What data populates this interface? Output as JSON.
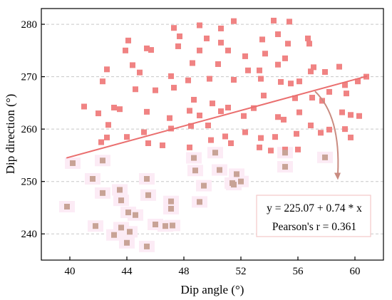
{
  "chart_data": {
    "type": "scatter",
    "xlabel": "Dip angle (°)",
    "ylabel": "Dip direction (°)",
    "xlim": [
      38,
      62
    ],
    "ylim": [
      235,
      283
    ],
    "xticks": [
      40,
      44,
      48,
      52,
      56,
      60
    ],
    "yticks": [
      240,
      250,
      260,
      270,
      280
    ],
    "xtick_labels": [
      "40",
      "44",
      "48",
      "52",
      "56",
      "60"
    ],
    "ytick_labels": [
      "240",
      "250",
      "260",
      "270",
      "280"
    ],
    "grid": "horizontal dashed",
    "colors": {
      "upper": "#f08383",
      "lower": "#c8a396",
      "fit_line": "#ea6f6f",
      "arrow": "#c98b80",
      "grid": "#c8c8c8",
      "annotation_border": "#f3c9c9",
      "halo": "#fcebf5"
    },
    "fit": {
      "intercept": 225.07,
      "slope": 0.74,
      "x_start": 39.8,
      "x_end": 60.8,
      "equation": "y = 225.07 + 0.74 * x",
      "pearson": "Pearson's r = 0.361"
    },
    "arrow": {
      "from": [
        57.2,
        267.2
      ],
      "to": [
        58.8,
        250.3
      ]
    },
    "series": [
      {
        "role": "upper",
        "points": [
          [
            51.5,
            280.6
          ],
          [
            54.3,
            280.7
          ],
          [
            55.4,
            280.5
          ],
          [
            47.3,
            279.3
          ],
          [
            49.1,
            279.8
          ],
          [
            50.6,
            279.2
          ],
          [
            47.7,
            277.7
          ],
          [
            49.6,
            277.3
          ],
          [
            53.5,
            277.1
          ],
          [
            54.6,
            278.1
          ],
          [
            55.3,
            276.3
          ],
          [
            56.7,
            277.3
          ],
          [
            44.1,
            276.9
          ],
          [
            45.4,
            275.4
          ],
          [
            47.6,
            275.8
          ],
          [
            49.1,
            275.0
          ],
          [
            50.6,
            276.5
          ],
          [
            51.1,
            275.0
          ],
          [
            56.8,
            276.3
          ],
          [
            42.6,
            271.4
          ],
          [
            44.4,
            272.2
          ],
          [
            43.9,
            275.0
          ],
          [
            45.7,
            275.1
          ],
          [
            48.6,
            272.6
          ],
          [
            50.4,
            272.4
          ],
          [
            52.3,
            273.9
          ],
          [
            53.7,
            274.4
          ],
          [
            55.1,
            273.5
          ],
          [
            52.5,
            271.2
          ],
          [
            53.3,
            271.2
          ],
          [
            54.6,
            272.3
          ],
          [
            57.1,
            271.8
          ],
          [
            56.9,
            271.0
          ],
          [
            42.3,
            269.1
          ],
          [
            44.9,
            270.8
          ],
          [
            47.1,
            270.1
          ],
          [
            48.3,
            269.3
          ],
          [
            49.8,
            269.6
          ],
          [
            51.5,
            269.4
          ],
          [
            53.4,
            269.6
          ],
          [
            54.8,
            269.0
          ],
          [
            55.5,
            268.7
          ],
          [
            56.1,
            269.1
          ],
          [
            57.9,
            270.9
          ],
          [
            58.9,
            271.9
          ],
          [
            59.3,
            268.4
          ],
          [
            60.2,
            269.1
          ],
          [
            60.8,
            270.0
          ],
          [
            43.1,
            264.1
          ],
          [
            44.6,
            267.6
          ],
          [
            46.0,
            267.4
          ],
          [
            47.3,
            267.9
          ],
          [
            48.7,
            265.6
          ],
          [
            50.0,
            264.9
          ],
          [
            51.1,
            264.1
          ],
          [
            52.9,
            264.0
          ],
          [
            53.6,
            266.4
          ],
          [
            55.8,
            265.9
          ],
          [
            57.0,
            266.0
          ],
          [
            58.2,
            267.1
          ],
          [
            59.4,
            266.8
          ],
          [
            41.0,
            264.3
          ],
          [
            42.0,
            263.0
          ],
          [
            43.5,
            263.8
          ],
          [
            45.4,
            263.3
          ],
          [
            47.0,
            262.1
          ],
          [
            48.4,
            263.5
          ],
          [
            49.1,
            262.6
          ],
          [
            50.6,
            263.4
          ],
          [
            52.2,
            262.5
          ],
          [
            54.6,
            262.3
          ],
          [
            55.0,
            261.8
          ],
          [
            56.1,
            263.2
          ],
          [
            57.7,
            265.4
          ],
          [
            59.1,
            263.2
          ],
          [
            59.7,
            262.7
          ],
          [
            60.3,
            262.5
          ],
          [
            42.7,
            260.8
          ],
          [
            45.2,
            259.4
          ],
          [
            47.1,
            260.1
          ],
          [
            48.5,
            260.6
          ],
          [
            49.7,
            260.7
          ],
          [
            50.9,
            258.6
          ],
          [
            52.3,
            259.4
          ],
          [
            53.4,
            258.3
          ],
          [
            54.4,
            258.5
          ],
          [
            55.9,
            259.1
          ],
          [
            56.9,
            260.7
          ],
          [
            57.6,
            259.3
          ],
          [
            59.3,
            260.0
          ],
          [
            59.7,
            258.4
          ],
          [
            42.2,
            257.5
          ],
          [
            44.0,
            258.5
          ],
          [
            45.5,
            257.3
          ],
          [
            46.5,
            256.9
          ],
          [
            48.4,
            256.5
          ],
          [
            49.9,
            257.9
          ],
          [
            51.3,
            257.3
          ],
          [
            53.3,
            256.5
          ],
          [
            54.1,
            255.9
          ],
          [
            55.1,
            256.1
          ],
          [
            56.0,
            256.1
          ],
          [
            58.2,
            259.9
          ],
          [
            42.6,
            258.4
          ]
        ]
      },
      {
        "role": "lower",
        "points": [
          [
            42.3,
            254.0
          ],
          [
            48.7,
            254.5
          ],
          [
            50.2,
            255.5
          ],
          [
            55.1,
            255.5
          ],
          [
            57.9,
            254.6
          ],
          [
            40.2,
            253.5
          ],
          [
            48.8,
            252.1
          ],
          [
            50.5,
            252.2
          ],
          [
            51.7,
            251.4
          ],
          [
            55.1,
            252.8
          ],
          [
            41.6,
            250.5
          ],
          [
            45.4,
            250.5
          ],
          [
            49.4,
            249.2
          ],
          [
            51.4,
            249.7
          ],
          [
            52.0,
            250.0
          ],
          [
            42.3,
            247.8
          ],
          [
            43.5,
            248.4
          ],
          [
            45.5,
            247.4
          ],
          [
            47.1,
            246.2
          ],
          [
            49.1,
            246.1
          ],
          [
            51.5,
            249.4
          ],
          [
            39.8,
            245.2
          ],
          [
            43.6,
            246.4
          ],
          [
            47.1,
            244.8
          ],
          [
            41.8,
            241.5
          ],
          [
            44.1,
            244.1
          ],
          [
            44.6,
            243.6
          ],
          [
            46.0,
            241.8
          ],
          [
            46.7,
            241.5
          ],
          [
            47.2,
            241.6
          ],
          [
            43.6,
            241.2
          ],
          [
            44.2,
            240.4
          ],
          [
            43.1,
            239.8
          ],
          [
            45.4,
            237.6
          ],
          [
            44.0,
            238.3
          ]
        ]
      }
    ]
  }
}
